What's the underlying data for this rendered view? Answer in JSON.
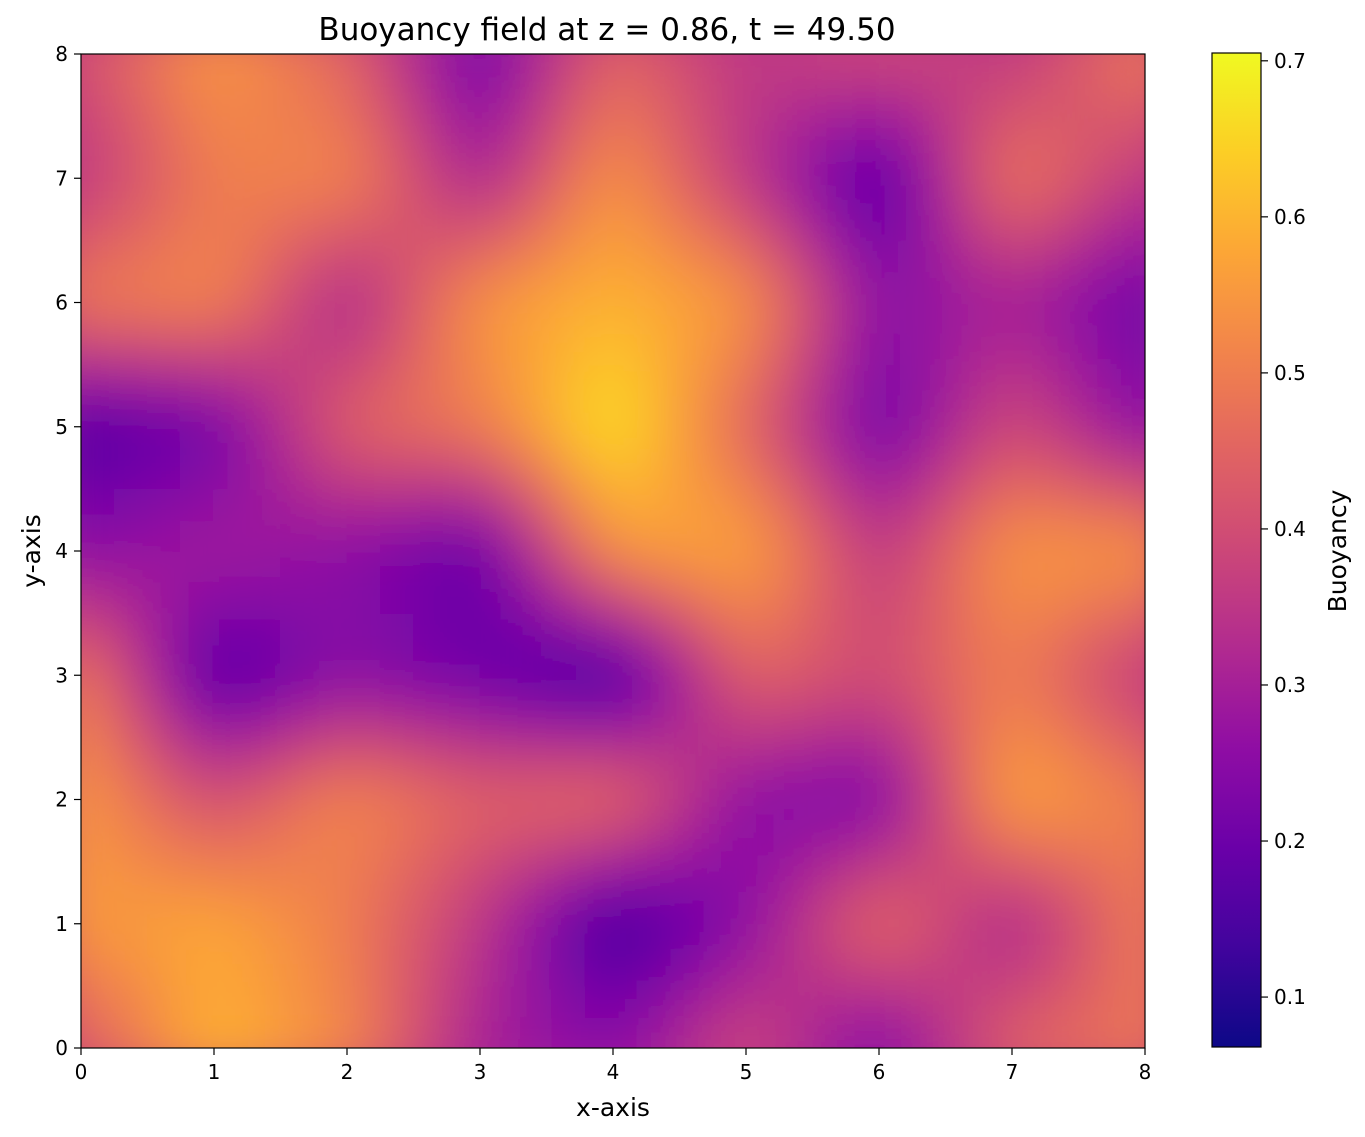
{
  "chart_data": {
    "type": "heatmap",
    "title": "Buoyancy field at z = 0.86, t = 49.50",
    "xlabel": "x-axis",
    "ylabel": "y-axis",
    "xlim": [
      0,
      8
    ],
    "ylim": [
      0,
      8
    ],
    "x_ticks": [
      "0",
      "1",
      "2",
      "3",
      "4",
      "5",
      "6",
      "7",
      "8"
    ],
    "y_ticks": [
      "0",
      "1",
      "2",
      "3",
      "4",
      "5",
      "6",
      "7",
      "8"
    ],
    "colormap": "plasma",
    "colorbar": {
      "label": "Buoyancy",
      "range": [
        0.068,
        0.705
      ],
      "ticks": [
        "0.1",
        "0.2",
        "0.3",
        "0.4",
        "0.5",
        "0.6",
        "0.7"
      ],
      "tick_values": [
        0.1,
        0.2,
        0.3,
        0.4,
        0.5,
        0.6,
        0.7
      ]
    },
    "grid": false,
    "field": {
      "x": [
        0,
        1,
        2,
        3,
        4,
        5,
        6,
        7,
        8
      ],
      "y": [
        0,
        1,
        2,
        3,
        4,
        5,
        6,
        7,
        8
      ],
      "z": [
        [
          0.42,
          0.6,
          0.52,
          0.3,
          0.25,
          0.4,
          0.22,
          0.45,
          0.48
        ],
        [
          0.55,
          0.58,
          0.5,
          0.35,
          0.12,
          0.25,
          0.48,
          0.3,
          0.5
        ],
        [
          0.55,
          0.4,
          0.52,
          0.45,
          0.48,
          0.25,
          0.22,
          0.58,
          0.5
        ],
        [
          0.5,
          0.15,
          0.25,
          0.2,
          0.12,
          0.45,
          0.4,
          0.5,
          0.35
        ],
        [
          0.25,
          0.3,
          0.25,
          0.18,
          0.55,
          0.58,
          0.35,
          0.55,
          0.55
        ],
        [
          0.15,
          0.2,
          0.45,
          0.5,
          0.68,
          0.45,
          0.2,
          0.4,
          0.25
        ],
        [
          0.5,
          0.52,
          0.3,
          0.55,
          0.6,
          0.55,
          0.25,
          0.3,
          0.2
        ],
        [
          0.35,
          0.5,
          0.52,
          0.3,
          0.55,
          0.35,
          0.15,
          0.5,
          0.35
        ],
        [
          0.4,
          0.55,
          0.45,
          0.2,
          0.45,
          0.35,
          0.4,
          0.35,
          0.5
        ]
      ]
    }
  }
}
